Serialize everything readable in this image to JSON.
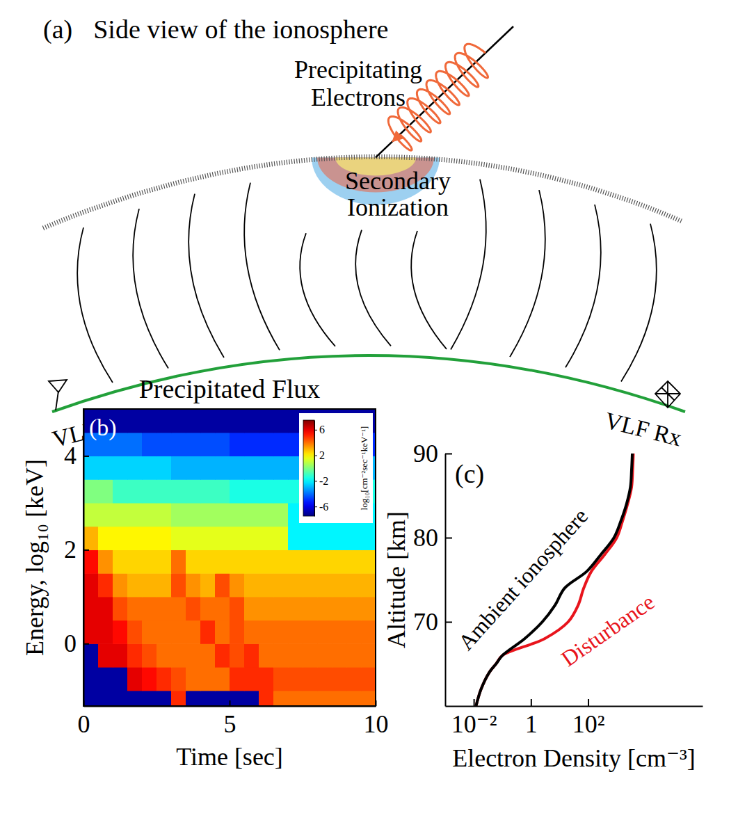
{
  "diagram": {
    "panel_label": "(a)",
    "title": "Side view of the ionosphere",
    "labels": {
      "precipitating_electrons": [
        "Precipitating",
        "Electrons"
      ],
      "secondary_ionization": [
        "Secondary",
        "Ionization"
      ],
      "transmitter": "VLF Tx",
      "receiver": "VLF Rx"
    }
  },
  "chart_data": [
    {
      "type": "heatmap",
      "panel_label": "(b)",
      "title": "Precipitated Flux",
      "x_label": "Time [sec]",
      "y_label": "Energy, log₁₀ [keV]",
      "xlim": [
        0,
        10
      ],
      "xticks": [
        0,
        5,
        10
      ],
      "ylim": [
        -1.33,
        5
      ],
      "yticks": [
        0,
        2,
        4
      ],
      "x_bins": [
        0,
        0.5,
        1,
        1.5,
        2,
        2.5,
        3,
        3.5,
        4,
        4.5,
        5,
        5.5,
        6,
        6.5,
        7,
        7.5,
        8,
        8.5,
        9,
        9.5,
        10
      ],
      "y_bins": [
        -1.33,
        -1,
        -0.5,
        0,
        0.5,
        1,
        1.5,
        2,
        2.5,
        3,
        3.5,
        4,
        4.5,
        5
      ],
      "cells": [
        [
          -7,
          -7,
          -7,
          -7,
          -7,
          -7,
          5,
          -7,
          -7,
          -7,
          -7,
          -7,
          5,
          4,
          4,
          4,
          4,
          4,
          4,
          4
        ],
        [
          -7,
          -7,
          -7,
          6,
          5.5,
          5,
          4.5,
          4,
          4,
          4,
          5,
          5,
          5,
          4.5,
          4.5,
          4.5,
          4.5,
          4.5,
          4.5,
          4.5
        ],
        [
          -7,
          6,
          6,
          5,
          4.5,
          4,
          4,
          4,
          4,
          5,
          4.5,
          5,
          4,
          4,
          4,
          4,
          4,
          4,
          4,
          4
        ],
        [
          6,
          6,
          5.5,
          4.5,
          4,
          4,
          4,
          4,
          5,
          4,
          4.5,
          4,
          4,
          4,
          4,
          4,
          4,
          4,
          4,
          4
        ],
        [
          6,
          6,
          4.5,
          4,
          4,
          4,
          4,
          4.5,
          4,
          4,
          4.5,
          3.5,
          3.5,
          3.5,
          3.5,
          3.5,
          3.5,
          3.5,
          3.5,
          3.5
        ],
        [
          6,
          5,
          3.5,
          3,
          3,
          3,
          4.5,
          3.5,
          3,
          4.5,
          3.5,
          3,
          3,
          3,
          3,
          3,
          3,
          3,
          3,
          3
        ],
        [
          5.5,
          3.5,
          2.5,
          2.5,
          2.5,
          2.5,
          4,
          2.5,
          2.5,
          2.5,
          2.5,
          2.5,
          2.5,
          2.5,
          2.5,
          2.5,
          2.5,
          2.5,
          2.5,
          2.5
        ],
        [
          3,
          2,
          2,
          2,
          2,
          2,
          1.5,
          1.5,
          1.5,
          1.5,
          1.5,
          1.5,
          1.5,
          1.5,
          -2,
          -2,
          -2,
          -2,
          -2,
          -2
        ],
        [
          1,
          1,
          1,
          1,
          1,
          1,
          0.5,
          0.5,
          0.5,
          0.5,
          0.5,
          0.5,
          0.5,
          0.5,
          -2,
          -2,
          -2,
          -2,
          -2,
          -2
        ],
        [
          0,
          0,
          -1,
          -1,
          -1,
          -1,
          -1,
          -1,
          -1,
          -1,
          -1.5,
          -1.5,
          -1.5,
          -1.5,
          -1.5,
          -1.5,
          -1.5,
          -1.5,
          -1.5,
          -1.5
        ],
        [
          -2.5,
          -2.5,
          -2.5,
          -2.5,
          -2.5,
          -2.5,
          -3,
          -3,
          -3,
          -3,
          -3,
          -3,
          -3,
          -3,
          -3,
          -3,
          -3,
          -3,
          -3,
          -3
        ],
        [
          -4,
          -4,
          -4,
          -4,
          -4.5,
          -4.5,
          -4.5,
          -4.5,
          -4.5,
          -4.5,
          -5,
          -5,
          -5,
          -5,
          -5,
          -5,
          -5,
          -5,
          -5,
          -5
        ],
        [
          -7,
          -7,
          -7,
          -7,
          -7,
          -7,
          -7,
          -7,
          -7,
          -7,
          -7,
          -7,
          -7,
          -7,
          -7,
          -7,
          -7,
          -7,
          -7,
          -7
        ]
      ],
      "colorbar": {
        "label": "log₁₀[cm⁻²sec⁻¹keV⁻¹]",
        "range": [
          -7.5,
          7.5
        ],
        "ticks": [
          6,
          2,
          -2,
          -6
        ]
      }
    },
    {
      "type": "line",
      "panel_label": "(c)",
      "x_label": "Electron Density [cm⁻³]",
      "y_label": "Altitude [km]",
      "log": "x",
      "xlim": [
        0.001,
        1000000
      ],
      "xticks": [
        {
          "value": 0.01,
          "label": "10⁻²"
        },
        1,
        {
          "value": 100,
          "label": "10²"
        }
      ],
      "ylim": [
        60,
        90
      ],
      "yticks": [
        70,
        80,
        90
      ],
      "series": [
        {
          "name": "Ambient ionosphere",
          "color": "#000000",
          "x": [
            0.012,
            0.018,
            0.035,
            0.06,
            0.1,
            0.6,
            2.5,
            7,
            15,
            90,
            280,
            800,
            1400,
            2200,
            3000,
            3300,
            3500
          ],
          "values": [
            60,
            62,
            64,
            65,
            66,
            68,
            70,
            72,
            74,
            76,
            78,
            80,
            82,
            84,
            86,
            88,
            90
          ]
        },
        {
          "name": "Disturbance",
          "color": "#e8141c",
          "x": [
            0.012,
            0.018,
            0.035,
            0.06,
            0.1,
            3,
            20,
            45,
            70,
            130,
            380,
            1000,
            1600,
            2400,
            3300,
            3600,
            3800
          ],
          "values": [
            60,
            62,
            64,
            65,
            66,
            68,
            70,
            72,
            74,
            76,
            78,
            80,
            82,
            84,
            86,
            88,
            90
          ]
        }
      ]
    }
  ]
}
